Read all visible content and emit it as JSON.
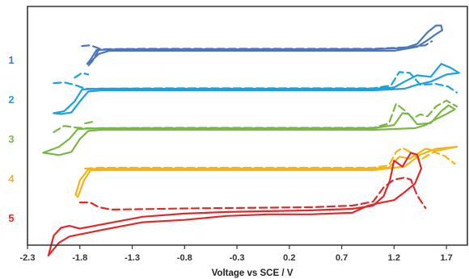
{
  "chart_data": {
    "type": "line",
    "xlabel": "Voltage vs SCE / V",
    "xlim": [
      -2.3,
      1.9
    ],
    "x_ticks": [
      -2.3,
      -1.8,
      -1.3,
      -0.8,
      -0.3,
      0.2,
      0.7,
      1.2,
      1.7
    ],
    "x_tick_labels": [
      "-2.3",
      "-1.8",
      "-1.3",
      "-0.8",
      "-0.3",
      "0.2",
      "0.7",
      "1.2",
      "1.7"
    ],
    "y_values_shown": false,
    "grid": false,
    "colors": {
      "1": "#4a77be",
      "2": "#1ba1dc",
      "3": "#7ab648",
      "4": "#f2b419",
      "5": "#e02a2a",
      "axis": "#333333"
    },
    "series": [
      {
        "name": "1",
        "color": "#4a77be",
        "offset": 5.0,
        "solid_forward": [
          [
            -1.64,
            0.0
          ],
          [
            -1.4,
            0.02
          ],
          [
            -1.0,
            0.02
          ],
          [
            -0.5,
            0.02
          ],
          [
            0.0,
            0.02
          ],
          [
            0.5,
            0.02
          ],
          [
            1.0,
            0.02
          ],
          [
            1.3,
            0.05
          ],
          [
            1.42,
            0.15
          ],
          [
            1.52,
            0.45
          ],
          [
            1.6,
            0.62
          ],
          [
            1.65,
            0.62
          ],
          [
            1.66,
            0.5
          ]
        ],
        "solid_reverse": [
          [
            1.66,
            0.5
          ],
          [
            1.6,
            0.4
          ],
          [
            1.52,
            0.25
          ],
          [
            1.42,
            0.08
          ],
          [
            1.2,
            -0.02
          ],
          [
            0.5,
            -0.02
          ],
          [
            0.0,
            -0.02
          ],
          [
            -0.5,
            -0.02
          ],
          [
            -1.0,
            -0.02
          ],
          [
            -1.4,
            -0.02
          ],
          [
            -1.52,
            -0.02
          ],
          [
            -1.62,
            -0.1
          ],
          [
            -1.7,
            -0.3
          ],
          [
            -1.73,
            -0.35
          ],
          [
            -1.7,
            -0.25
          ],
          [
            -1.64,
            0.0
          ]
        ],
        "dashed_forward": [
          [
            -1.78,
            0.08
          ],
          [
            -1.7,
            0.1
          ],
          [
            -1.6,
            0.0
          ],
          [
            -1.2,
            0.01
          ],
          [
            -0.5,
            0.01
          ],
          [
            0.0,
            0.01
          ],
          [
            0.5,
            0.01
          ],
          [
            1.0,
            0.01
          ],
          [
            1.35,
            0.05
          ],
          [
            1.5,
            0.1
          ],
          [
            1.56,
            0.2
          ]
        ],
        "dashed_reverse": [
          [
            -1.62,
            -0.02
          ],
          [
            -1.68,
            -0.3
          ],
          [
            -1.72,
            -0.42
          ]
        ]
      },
      {
        "name": "2",
        "color": "#1ba1dc",
        "offset": 4.0,
        "solid_forward": [
          [
            -2.05,
            -0.6
          ],
          [
            -1.95,
            -0.55
          ],
          [
            -1.85,
            -0.3
          ],
          [
            -1.78,
            0.0
          ],
          [
            -1.6,
            0.02
          ],
          [
            -1.0,
            0.02
          ],
          [
            -0.5,
            0.02
          ],
          [
            0.0,
            0.02
          ],
          [
            0.5,
            0.02
          ],
          [
            1.0,
            0.02
          ],
          [
            1.2,
            0.05
          ],
          [
            1.3,
            0.2
          ],
          [
            1.42,
            0.36
          ],
          [
            1.55,
            0.32
          ],
          [
            1.65,
            0.65
          ],
          [
            1.74,
            0.55
          ],
          [
            1.82,
            0.42
          ]
        ],
        "solid_reverse": [
          [
            1.82,
            0.42
          ],
          [
            1.7,
            0.38
          ],
          [
            1.55,
            0.2
          ],
          [
            1.42,
            0.12
          ],
          [
            1.3,
            0.02
          ],
          [
            1.0,
            -0.02
          ],
          [
            0.0,
            -0.02
          ],
          [
            -1.0,
            -0.02
          ],
          [
            -1.6,
            -0.02
          ],
          [
            -1.72,
            -0.05
          ],
          [
            -1.8,
            -0.3
          ],
          [
            -1.88,
            -0.58
          ],
          [
            -1.98,
            -0.62
          ],
          [
            -2.05,
            -0.6
          ]
        ],
        "dashed_forward": [
          [
            -2.05,
            0.14
          ],
          [
            -1.95,
            0.16
          ],
          [
            -1.85,
            0.1
          ],
          [
            -1.75,
            0.0
          ],
          [
            -1.0,
            0.01
          ],
          [
            0.0,
            0.01
          ],
          [
            0.5,
            0.01
          ],
          [
            1.0,
            0.01
          ],
          [
            1.17,
            0.08
          ],
          [
            1.25,
            0.42
          ],
          [
            1.35,
            0.4
          ],
          [
            1.45,
            0.1
          ],
          [
            1.6,
            0.12
          ],
          [
            1.72,
            0.05
          ],
          [
            1.8,
            -0.1
          ]
        ],
        "dashed_reverse": [
          [
            -1.85,
            0.28
          ],
          [
            -1.78,
            0.4
          ],
          [
            -1.72,
            0.36
          ]
        ]
      },
      {
        "name": "3",
        "color": "#7ab648",
        "offset": 3.0,
        "solid_forward": [
          [
            -2.15,
            -0.6
          ],
          [
            -2.0,
            -0.45
          ],
          [
            -1.9,
            -0.25
          ],
          [
            -1.82,
            0.0
          ],
          [
            -1.6,
            0.02
          ],
          [
            -1.0,
            0.02
          ],
          [
            -0.5,
            0.02
          ],
          [
            0.0,
            0.02
          ],
          [
            0.5,
            0.02
          ],
          [
            1.0,
            0.02
          ],
          [
            1.2,
            0.1
          ],
          [
            1.28,
            0.4
          ],
          [
            1.34,
            0.38
          ],
          [
            1.42,
            0.12
          ],
          [
            1.55,
            0.15
          ],
          [
            1.65,
            0.45
          ],
          [
            1.72,
            0.6
          ],
          [
            1.78,
            0.5
          ]
        ],
        "solid_reverse": [
          [
            1.78,
            0.5
          ],
          [
            1.7,
            0.38
          ],
          [
            1.6,
            0.25
          ],
          [
            1.5,
            0.1
          ],
          [
            1.4,
            0.02
          ],
          [
            1.0,
            -0.02
          ],
          [
            0.0,
            -0.02
          ],
          [
            -1.0,
            -0.02
          ],
          [
            -1.6,
            -0.02
          ],
          [
            -1.72,
            -0.05
          ],
          [
            -1.8,
            -0.25
          ],
          [
            -1.88,
            -0.58
          ],
          [
            -2.0,
            -0.66
          ],
          [
            -2.15,
            -0.6
          ]
        ],
        "dashed_forward": [
          [
            -2.05,
            -0.1
          ],
          [
            -1.95,
            0.06
          ],
          [
            -1.85,
            0.02
          ],
          [
            -1.75,
            0.0
          ],
          [
            -1.0,
            0.01
          ],
          [
            0.0,
            0.01
          ],
          [
            0.5,
            0.01
          ],
          [
            1.0,
            0.01
          ],
          [
            1.15,
            0.12
          ],
          [
            1.22,
            0.62
          ],
          [
            1.3,
            0.45
          ],
          [
            1.38,
            0.25
          ],
          [
            1.45,
            0.35
          ],
          [
            1.52,
            0.3
          ],
          [
            1.6,
            0.55
          ],
          [
            1.7,
            0.7
          ],
          [
            1.8,
            0.55
          ]
        ],
        "dashed_reverse": [
          [
            -1.75,
            0.12
          ],
          [
            -1.65,
            0.18
          ]
        ]
      },
      {
        "name": "4",
        "color": "#f2b419",
        "offset": 2.0,
        "solid_forward": [
          [
            -1.84,
            -0.66
          ],
          [
            -1.8,
            -0.3
          ],
          [
            -1.72,
            -0.02
          ],
          [
            -1.6,
            0.0
          ],
          [
            -1.0,
            0.0
          ],
          [
            -0.5,
            0.0
          ],
          [
            0.0,
            0.0
          ],
          [
            0.5,
            0.0
          ],
          [
            1.0,
            0.0
          ],
          [
            1.15,
            0.02
          ],
          [
            1.25,
            0.3
          ],
          [
            1.35,
            0.25
          ],
          [
            1.5,
            0.5
          ],
          [
            1.6,
            0.45
          ],
          [
            1.7,
            0.5
          ],
          [
            1.8,
            0.55
          ]
        ],
        "solid_reverse": [
          [
            1.8,
            0.55
          ],
          [
            1.6,
            0.5
          ],
          [
            1.45,
            0.35
          ],
          [
            1.3,
            0.05
          ],
          [
            1.0,
            -0.04
          ],
          [
            0.0,
            -0.04
          ],
          [
            -1.0,
            -0.04
          ],
          [
            -1.6,
            -0.04
          ],
          [
            -1.7,
            -0.05
          ],
          [
            -1.76,
            -0.3
          ],
          [
            -1.82,
            -0.72
          ],
          [
            -1.84,
            -0.66
          ]
        ],
        "dashed_forward": [
          [
            -1.75,
            -0.02
          ],
          [
            -1.6,
            0.0
          ],
          [
            -1.0,
            0.0
          ],
          [
            0.0,
            0.0
          ],
          [
            0.5,
            0.0
          ],
          [
            1.0,
            0.0
          ],
          [
            1.15,
            0.06
          ],
          [
            1.22,
            0.4
          ],
          [
            1.28,
            0.5
          ],
          [
            1.35,
            0.4
          ],
          [
            1.45,
            0.2
          ],
          [
            1.58,
            0.4
          ],
          [
            1.68,
            0.3
          ],
          [
            1.78,
            0.1
          ]
        ],
        "dashed_reverse": []
      },
      {
        "name": "5",
        "color": "#e02a2a",
        "offset": 1.0,
        "solid_forward": [
          [
            -2.1,
            -1.2
          ],
          [
            -2.05,
            -0.7
          ],
          [
            -1.98,
            -0.5
          ],
          [
            -1.9,
            -0.45
          ],
          [
            -1.8,
            -0.52
          ],
          [
            -1.6,
            -0.42
          ],
          [
            -1.2,
            -0.22
          ],
          [
            -0.8,
            -0.14
          ],
          [
            -0.4,
            -0.1
          ],
          [
            0.0,
            -0.08
          ],
          [
            0.4,
            -0.06
          ],
          [
            0.8,
            -0.02
          ],
          [
            1.0,
            0.06
          ],
          [
            1.1,
            0.3
          ],
          [
            1.16,
            0.7
          ],
          [
            1.2,
            1.2
          ],
          [
            1.28,
            1.05
          ],
          [
            1.36,
            1.4
          ],
          [
            1.42,
            1.35
          ],
          [
            1.46,
            1.0
          ]
        ],
        "solid_reverse": [
          [
            1.46,
            1.0
          ],
          [
            1.4,
            0.62
          ],
          [
            1.3,
            0.4
          ],
          [
            1.2,
            0.2
          ],
          [
            1.05,
            0.12
          ],
          [
            0.95,
            0.06
          ],
          [
            0.8,
            -0.12
          ],
          [
            0.4,
            -0.16
          ],
          [
            0.0,
            -0.16
          ],
          [
            -0.4,
            -0.2
          ],
          [
            -0.8,
            -0.3
          ],
          [
            -1.2,
            -0.36
          ],
          [
            -1.6,
            -0.56
          ],
          [
            -1.9,
            -0.72
          ],
          [
            -2.0,
            -0.88
          ],
          [
            -2.1,
            -1.2
          ]
        ],
        "dashed_forward": [
          [
            -1.8,
            0.12
          ],
          [
            -1.7,
            0.12
          ],
          [
            -1.62,
            0.0
          ],
          [
            -1.5,
            -0.06
          ],
          [
            -1.2,
            -0.05
          ],
          [
            -0.8,
            -0.03
          ],
          [
            -0.4,
            -0.02
          ],
          [
            0.0,
            -0.01
          ],
          [
            0.4,
            0.0
          ],
          [
            0.8,
            0.04
          ],
          [
            1.0,
            0.14
          ],
          [
            1.1,
            0.5
          ],
          [
            1.2,
            0.7
          ],
          [
            1.3,
            0.75
          ],
          [
            1.36,
            0.7
          ],
          [
            1.42,
            0.3
          ],
          [
            1.5,
            -0.02
          ]
        ],
        "dashed_reverse": []
      }
    ]
  }
}
